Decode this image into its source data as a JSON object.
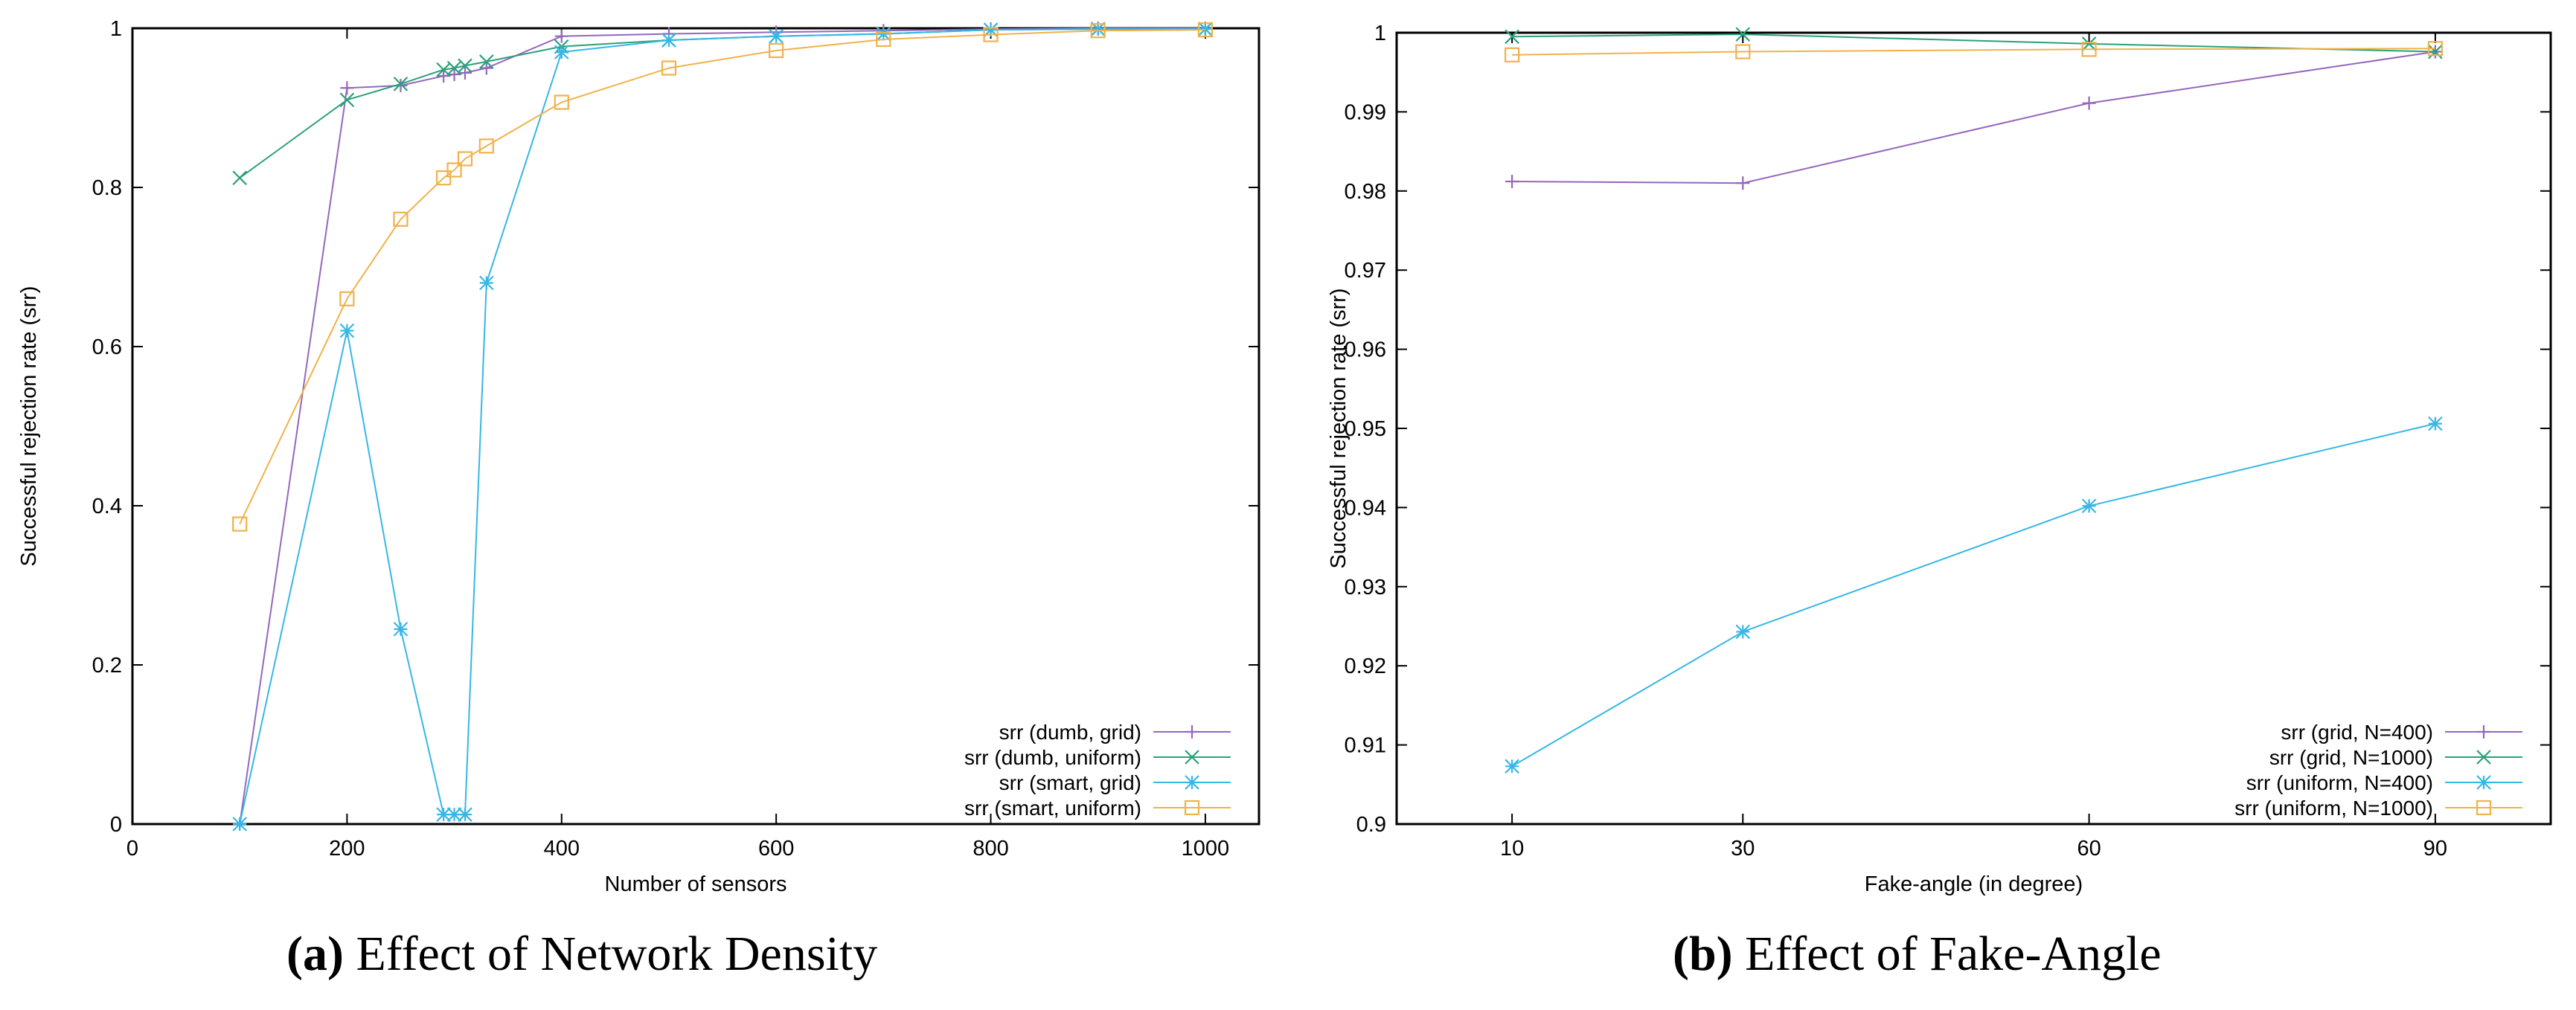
{
  "chart_data": [
    {
      "type": "line",
      "caption_label": "(a)",
      "caption_text": "Effect of Network Density",
      "xlabel": "Number of sensors",
      "ylabel": "Successful rejection rate (srr)",
      "xlim": [
        0,
        1050
      ],
      "ylim": [
        0,
        1
      ],
      "xticks": [
        0,
        200,
        400,
        600,
        800,
        1000
      ],
      "yticks": [
        0,
        0.2,
        0.4,
        0.6,
        0.8,
        1
      ],
      "ytick_labels": [
        "0",
        "0.2",
        "0.4",
        "0.6",
        "0.8",
        "1"
      ],
      "legend_position": "bottom-right",
      "series": [
        {
          "name": "srr (dumb, grid)",
          "color": "#9467bd",
          "marker": "plus",
          "x": [
            100,
            200,
            250,
            290,
            300,
            310,
            330,
            400,
            500,
            600,
            700,
            800,
            900,
            1000
          ],
          "y": [
            0,
            0.925,
            0.928,
            0.94,
            0.942,
            0.944,
            0.95,
            0.99,
            0.993,
            0.995,
            0.997,
            0.999,
            1.0,
            1.0
          ]
        },
        {
          "name": "srr (dumb, uniform)",
          "color": "#2ca07a",
          "marker": "x",
          "x": [
            100,
            200,
            250,
            290,
            300,
            310,
            330,
            400,
            500,
            600,
            700,
            800,
            900,
            1000
          ],
          "y": [
            0.812,
            0.91,
            0.93,
            0.948,
            0.95,
            0.953,
            0.958,
            0.977,
            0.985,
            0.99,
            0.993,
            0.998,
            0.999,
            0.999
          ]
        },
        {
          "name": "srr (smart, grid)",
          "color": "#36b7e6",
          "marker": "asterisk",
          "x": [
            100,
            200,
            250,
            290,
            300,
            310,
            330,
            400,
            500,
            600,
            700,
            800,
            900,
            1000
          ],
          "y": [
            0,
            0.62,
            0.245,
            0.012,
            0.012,
            0.012,
            0.68,
            0.97,
            0.985,
            0.99,
            0.993,
            0.998,
            0.999,
            0.999
          ]
        },
        {
          "name": "srr (smart, uniform)",
          "color": "#f0b24a",
          "marker": "square",
          "x": [
            100,
            200,
            250,
            290,
            300,
            310,
            330,
            400,
            500,
            600,
            700,
            800,
            900,
            1000
          ],
          "y": [
            0.377,
            0.66,
            0.76,
            0.812,
            0.822,
            0.836,
            0.852,
            0.907,
            0.95,
            0.972,
            0.986,
            0.992,
            0.997,
            0.998
          ]
        }
      ]
    },
    {
      "type": "line",
      "caption_label": "(b)",
      "caption_text": "Effect of Fake-Angle",
      "xlabel": "Fake-angle (in degree)",
      "ylabel": "Successful rejection rate (srr)",
      "xlim": [
        0,
        100
      ],
      "ylim": [
        0.9,
        1
      ],
      "xticks": [
        10,
        30,
        60,
        90
      ],
      "yticks": [
        0.9,
        0.91,
        0.92,
        0.93,
        0.94,
        0.95,
        0.96,
        0.97,
        0.98,
        0.99,
        1
      ],
      "ytick_labels": [
        "0.9",
        "0.91",
        "0.92",
        "0.93",
        "0.94",
        "0.95",
        "0.96",
        "0.97",
        "0.98",
        "0.99",
        "1"
      ],
      "legend_position": "bottom-right",
      "series": [
        {
          "name": "srr (grid, N=400)",
          "color": "#9467bd",
          "marker": "plus",
          "x": [
            10,
            30,
            60,
            90
          ],
          "y": [
            0.9812,
            0.981,
            0.9911,
            0.9976
          ]
        },
        {
          "name": "srr (grid, N=1000)",
          "color": "#2ca07a",
          "marker": "x",
          "x": [
            10,
            30,
            60,
            90
          ],
          "y": [
            0.9995,
            0.9998,
            0.9986,
            0.9976
          ]
        },
        {
          "name": "srr (uniform, N=400)",
          "color": "#36b7e6",
          "marker": "asterisk",
          "x": [
            10,
            30,
            60,
            90
          ],
          "y": [
            0.9073,
            0.9243,
            0.9402,
            0.9506
          ]
        },
        {
          "name": "srr (uniform, N=1000)",
          "color": "#f0b24a",
          "marker": "square",
          "x": [
            10,
            30,
            60,
            90
          ],
          "y": [
            0.9972,
            0.9976,
            0.9979,
            0.998
          ]
        }
      ]
    }
  ]
}
